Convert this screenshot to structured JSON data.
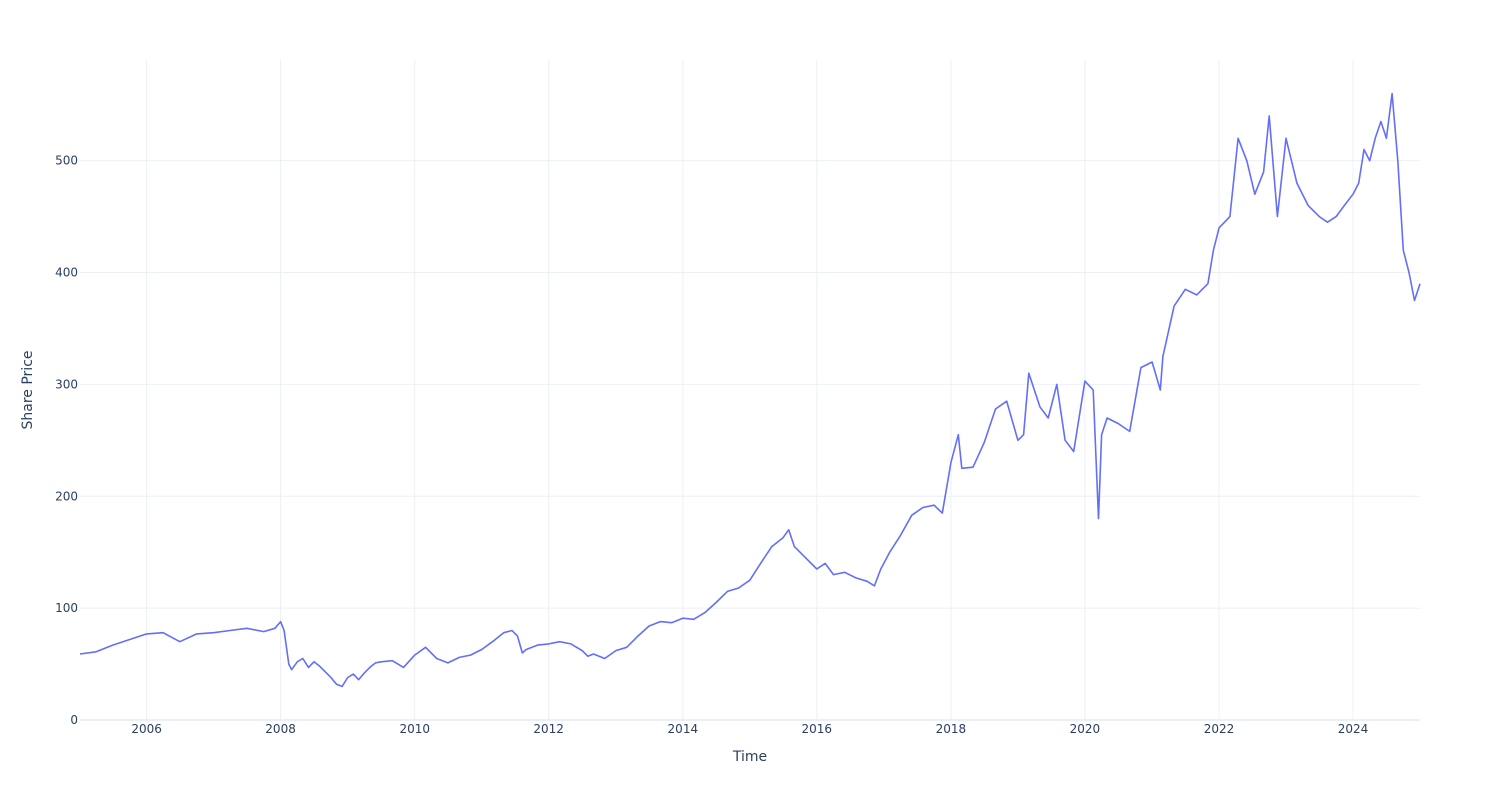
{
  "chart_data": {
    "type": "line",
    "title": "",
    "xlabel": "Time",
    "ylabel": "Share Price",
    "xlim": [
      "2005-01-03",
      "2024-12-31"
    ],
    "ylim": [
      0,
      590
    ],
    "x_ticks": [
      "2006",
      "2008",
      "2010",
      "2012",
      "2014",
      "2016",
      "2018",
      "2020",
      "2022",
      "2024"
    ],
    "y_ticks": [
      0,
      100,
      200,
      300,
      400,
      500
    ],
    "grid": true,
    "legend": "none",
    "line_color": "#636efa",
    "grid_color": "#ebf0f8",
    "series": [
      {
        "x": [
          "2005-01-03",
          "2005-04-01",
          "2005-07-01",
          "2005-10-01",
          "2006-01-01",
          "2006-04-01",
          "2006-07-01",
          "2006-10-01",
          "2007-01-01",
          "2007-04-01",
          "2007-07-01",
          "2007-10-01",
          "2007-12-01",
          "2008-01-01",
          "2008-01-20",
          "2008-02-15",
          "2008-03-01",
          "2008-04-01",
          "2008-05-01",
          "2008-06-01",
          "2008-07-01",
          "2008-08-01",
          "2008-09-01",
          "2008-10-01",
          "2008-11-01",
          "2008-12-01",
          "2009-01-01",
          "2009-02-01",
          "2009-03-01",
          "2009-04-01",
          "2009-05-01",
          "2009-06-01",
          "2009-07-01",
          "2009-09-01",
          "2009-11-01",
          "2010-01-01",
          "2010-03-01",
          "2010-05-01",
          "2010-07-01",
          "2010-09-01",
          "2010-11-01",
          "2011-01-01",
          "2011-03-01",
          "2011-05-01",
          "2011-06-15",
          "2011-07-15",
          "2011-08-10",
          "2011-09-01",
          "2011-11-01",
          "2012-01-01",
          "2012-03-01",
          "2012-05-01",
          "2012-06-01",
          "2012-07-01",
          "2012-08-01",
          "2012-09-01",
          "2012-11-01",
          "2013-01-01",
          "2013-03-01",
          "2013-05-01",
          "2013-07-01",
          "2013-09-01",
          "2013-11-01",
          "2014-01-01",
          "2014-03-01",
          "2014-05-01",
          "2014-07-01",
          "2014-09-01",
          "2014-11-01",
          "2015-01-01",
          "2015-03-01",
          "2015-05-01",
          "2015-07-01",
          "2015-08-01",
          "2015-09-01",
          "2015-11-01",
          "2016-01-01",
          "2016-02-15",
          "2016-04-01",
          "2016-06-01",
          "2016-08-01",
          "2016-10-01",
          "2016-11-10",
          "2016-12-15",
          "2017-02-01",
          "2017-04-01",
          "2017-06-01",
          "2017-08-01",
          "2017-10-01",
          "2017-11-15",
          "2018-01-01",
          "2018-02-10",
          "2018-03-01",
          "2018-05-01",
          "2018-07-01",
          "2018-09-01",
          "2018-11-01",
          "2019-01-01",
          "2019-02-01",
          "2019-03-01",
          "2019-05-01",
          "2019-06-15",
          "2019-08-01",
          "2019-09-15",
          "2019-11-01",
          "2020-01-01",
          "2020-02-15",
          "2020-03-15",
          "2020-04-01",
          "2020-05-01",
          "2020-07-01",
          "2020-09-01",
          "2020-11-01",
          "2021-01-01",
          "2021-02-15",
          "2021-03-01",
          "2021-05-01",
          "2021-07-01",
          "2021-09-01",
          "2021-11-01",
          "2021-12-01",
          "2022-01-01",
          "2022-03-01",
          "2022-04-15",
          "2022-06-01",
          "2022-07-15",
          "2022-09-01",
          "2022-10-01",
          "2022-11-15",
          "2023-01-01",
          "2023-03-01",
          "2023-05-01",
          "2023-07-01",
          "2023-08-15",
          "2023-10-01",
          "2023-11-15",
          "2024-01-01",
          "2024-02-01",
          "2024-03-01",
          "2024-04-01",
          "2024-05-01",
          "2024-06-01",
          "2024-07-01",
          "2024-08-01",
          "2024-09-01",
          "2024-10-01",
          "2024-11-01",
          "2024-12-01",
          "2024-12-31"
        ],
        "y": [
          59,
          61,
          67,
          72,
          77,
          78,
          70,
          77,
          78,
          80,
          82,
          79,
          82,
          88,
          80,
          50,
          45,
          52,
          55,
          47,
          52,
          48,
          43,
          38,
          32,
          30,
          38,
          41,
          36,
          42,
          47,
          51,
          52,
          53,
          47,
          58,
          65,
          55,
          51,
          56,
          58,
          63,
          70,
          78,
          80,
          75,
          60,
          63,
          67,
          68,
          70,
          68,
          65,
          62,
          57,
          59,
          55,
          62,
          65,
          75,
          84,
          88,
          87,
          91,
          90,
          96,
          105,
          115,
          118,
          125,
          140,
          155,
          163,
          170,
          155,
          145,
          135,
          140,
          130,
          132,
          127,
          124,
          120,
          135,
          150,
          165,
          183,
          190,
          192,
          185,
          230,
          255,
          225,
          226,
          248,
          278,
          285,
          250,
          255,
          310,
          280,
          270,
          300,
          250,
          240,
          303,
          295,
          180,
          255,
          270,
          265,
          258,
          315,
          320,
          295,
          325,
          370,
          385,
          380,
          390,
          420,
          440,
          450,
          520,
          500,
          470,
          490,
          540,
          450,
          520,
          480,
          460,
          450,
          445,
          450,
          460,
          470,
          480,
          510,
          500,
          520,
          535,
          520,
          560,
          500,
          420,
          400,
          375,
          390
        ]
      }
    ]
  }
}
